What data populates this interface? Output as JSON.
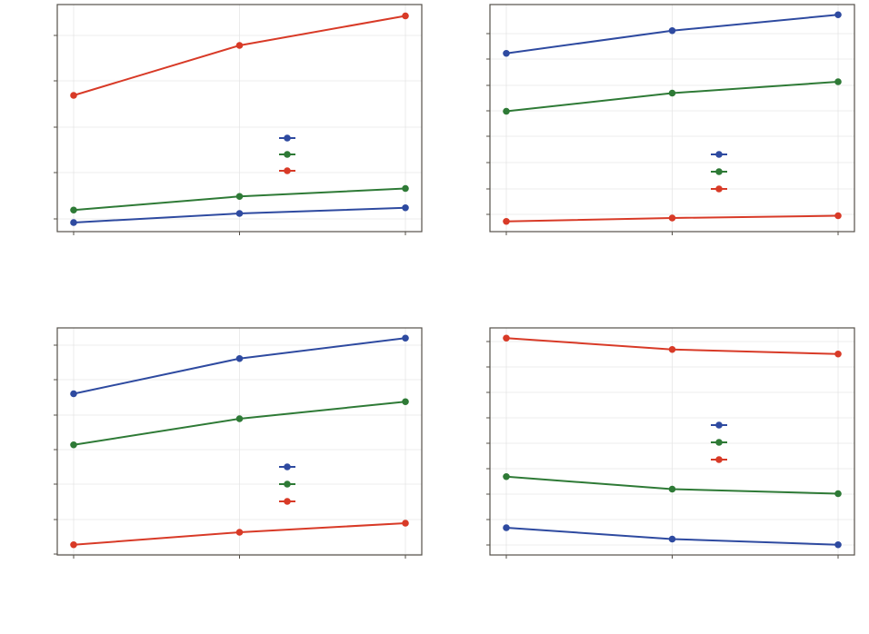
{
  "colors": {
    "blue": "#2e4aa0",
    "green": "#2e7a36",
    "red": "#d83a27"
  },
  "chart_data": [
    {
      "type": "line",
      "x": [
        1,
        2,
        3
      ],
      "ylim": [
        0,
        1
      ],
      "grid": true,
      "legend_placement": "center-right",
      "series": [
        {
          "color": "blue",
          "values": [
            0.04,
            0.08,
            0.105
          ]
        },
        {
          "color": "green",
          "values": [
            0.095,
            0.155,
            0.19
          ]
        },
        {
          "color": "red",
          "values": [
            0.6,
            0.82,
            0.95
          ]
        }
      ]
    },
    {
      "type": "line",
      "x": [
        1,
        2,
        3
      ],
      "ylim": [
        0,
        1
      ],
      "grid": true,
      "legend_placement": "center-right",
      "series": [
        {
          "color": "blue",
          "values": [
            0.785,
            0.885,
            0.955
          ]
        },
        {
          "color": "green",
          "values": [
            0.53,
            0.61,
            0.66
          ]
        },
        {
          "color": "red",
          "values": [
            0.045,
            0.06,
            0.07
          ]
        }
      ]
    },
    {
      "type": "line",
      "x": [
        1,
        2,
        3
      ],
      "ylim": [
        0,
        1
      ],
      "grid": true,
      "legend_placement": "center-right",
      "series": [
        {
          "color": "blue",
          "values": [
            0.71,
            0.865,
            0.955
          ]
        },
        {
          "color": "green",
          "values": [
            0.485,
            0.6,
            0.675
          ]
        },
        {
          "color": "red",
          "values": [
            0.045,
            0.1,
            0.14
          ]
        }
      ]
    },
    {
      "type": "line",
      "x": [
        1,
        2,
        3
      ],
      "ylim": [
        0,
        1
      ],
      "grid": true,
      "legend_placement": "center-right",
      "series": [
        {
          "color": "blue",
          "values": [
            0.12,
            0.07,
            0.045
          ]
        },
        {
          "color": "green",
          "values": [
            0.345,
            0.29,
            0.27
          ]
        },
        {
          "color": "red",
          "values": [
            0.955,
            0.905,
            0.885
          ]
        }
      ]
    }
  ]
}
